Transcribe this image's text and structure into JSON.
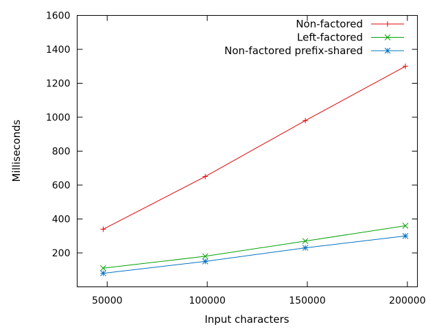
{
  "chart_data": {
    "type": "line",
    "xlabel": "Input characters",
    "ylabel": "Milliseconds",
    "xlim": [
      35000,
      205000
    ],
    "ylim": [
      0,
      1600
    ],
    "xticks": [
      50000,
      100000,
      150000,
      200000
    ],
    "yticks": [
      200,
      400,
      600,
      800,
      1000,
      1200,
      1400,
      1600
    ],
    "x": [
      48000,
      99000,
      149000,
      199000
    ],
    "grid": false,
    "legend_position": "top-right",
    "series": [
      {
        "name": "Non-factored",
        "values": [
          340,
          650,
          980,
          1300
        ],
        "color": "#e00000",
        "marker": "plus"
      },
      {
        "name": "Left-factored",
        "values": [
          110,
          180,
          270,
          360
        ],
        "color": "#00a000",
        "marker": "cross"
      },
      {
        "name": "Non-factored prefix-shared",
        "values": [
          80,
          150,
          230,
          300
        ],
        "color": "#0070c0",
        "marker": "star"
      }
    ]
  }
}
